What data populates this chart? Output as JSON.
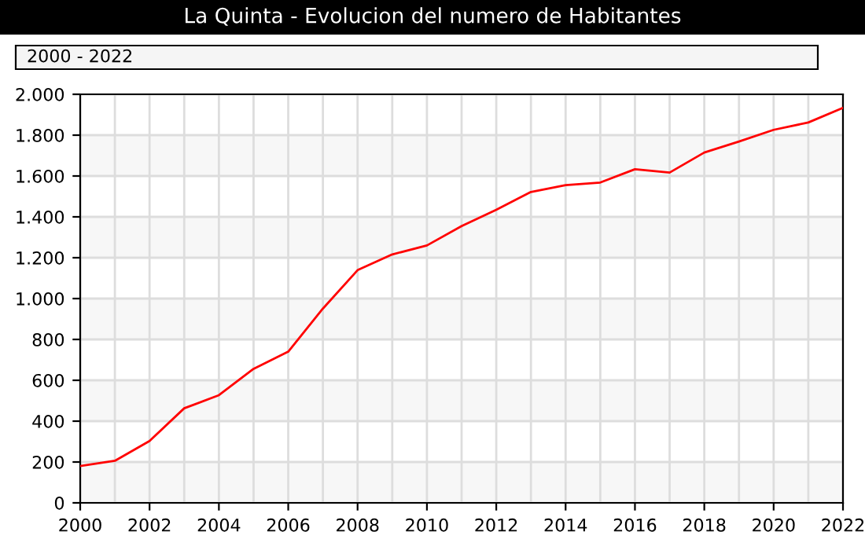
{
  "chart_data": {
    "type": "line",
    "title": "La Quinta - Evolucion del numero de Habitantes",
    "annotations": [
      "2000 - 2022"
    ],
    "x": [
      2000,
      2001,
      2002,
      2003,
      2004,
      2005,
      2006,
      2007,
      2008,
      2009,
      2010,
      2011,
      2012,
      2013,
      2014,
      2015,
      2016,
      2017,
      2018,
      2019,
      2020,
      2021,
      2022
    ],
    "series": [
      {
        "color": "#ff0000",
        "values": [
          180,
          206,
          303,
          463,
          527,
          656,
          740,
          951,
          1139,
          1216,
          1260,
          1355,
          1435,
          1522,
          1555,
          1568,
          1633,
          1617,
          1715,
          1769,
          1826,
          1862,
          1934
        ]
      }
    ],
    "xlim": [
      2000,
      2022
    ],
    "xticks": [
      2000,
      2002,
      2004,
      2006,
      2008,
      2010,
      2012,
      2014,
      2016,
      2018,
      2020,
      2022
    ],
    "ylim": [
      0,
      2000
    ],
    "yticks": [
      0,
      200,
      400,
      600,
      800,
      {
        "value": 1000,
        "label": "1.000"
      },
      {
        "value": 1200,
        "label": "1.200"
      },
      {
        "value": 1400,
        "label": "1.400"
      },
      {
        "value": 1600,
        "label": "1.600"
      },
      {
        "value": 1800,
        "label": "1.800"
      },
      {
        "value": 2000,
        "label": "2.000"
      }
    ],
    "grid": true,
    "marker": "none",
    "line_style": "solid"
  }
}
